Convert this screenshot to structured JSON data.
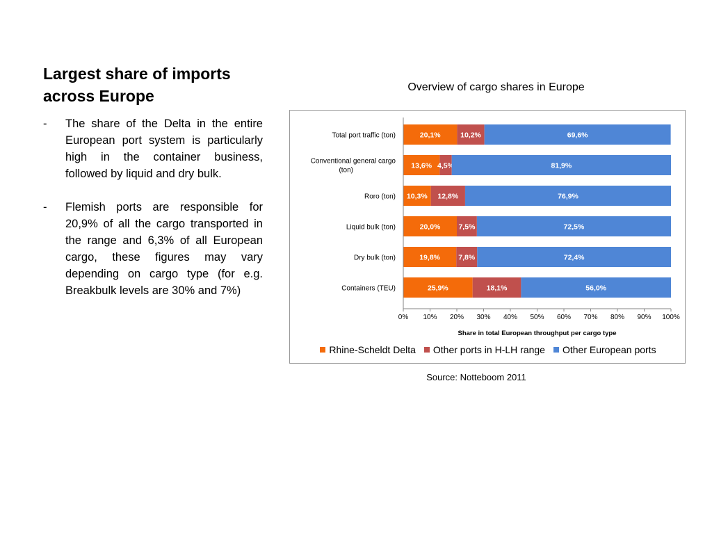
{
  "slide": {
    "title": "Largest share of imports across Europe",
    "bullets": [
      "The share of the Delta in the entire European port system is particularly high in the container business, followed by liquid and dry bulk.",
      "Flemish ports are responsible for 20,9% of all the cargo transported in the range and 6,3% of all European cargo, these figures may vary depending on cargo type (for e.g. Breakbulk levels are 30% and 7%)"
    ],
    "bullet_marker": "-",
    "source": "Source: Notteboom 2011"
  },
  "chart_data": {
    "type": "bar",
    "orientation": "horizontal",
    "stacked": true,
    "title": "Overview of cargo shares in Europe",
    "xlabel": "Share in total European throughput per cargo type",
    "ylabel": "",
    "xlim": [
      0,
      100
    ],
    "x_ticks": [
      "0%",
      "10%",
      "20%",
      "30%",
      "40%",
      "50%",
      "60%",
      "70%",
      "80%",
      "90%",
      "100%"
    ],
    "grid": false,
    "legend_position": "bottom",
    "categories": [
      "Total port traffic (ton)",
      "Conventional general cargo (ton)",
      "Roro (ton)",
      "Liquid bulk (ton)",
      "Dry bulk (ton)",
      "Containers (TEU)"
    ],
    "series": [
      {
        "name": "Rhine-Scheldt Delta",
        "color": "#f46b0a",
        "values": [
          20.1,
          13.6,
          10.3,
          20.0,
          19.8,
          25.9
        ],
        "labels": [
          "20,1%",
          "13,6%",
          "10,3%",
          "20,0%",
          "19,8%",
          "25,9%"
        ]
      },
      {
        "name": "Other ports in H-LH range",
        "color": "#c0504d",
        "values": [
          10.2,
          4.5,
          12.8,
          7.5,
          7.8,
          18.1
        ],
        "labels": [
          "10,2%",
          "4,5%",
          "12,8%",
          "7,5%",
          "7,8%",
          "18,1%"
        ]
      },
      {
        "name": "Other European ports",
        "color": "#4f86d6",
        "values": [
          69.6,
          81.9,
          76.9,
          72.5,
          72.4,
          56.0
        ],
        "labels": [
          "69,6%",
          "81,9%",
          "76,9%",
          "72,5%",
          "72,4%",
          "56,0%"
        ]
      }
    ]
  }
}
